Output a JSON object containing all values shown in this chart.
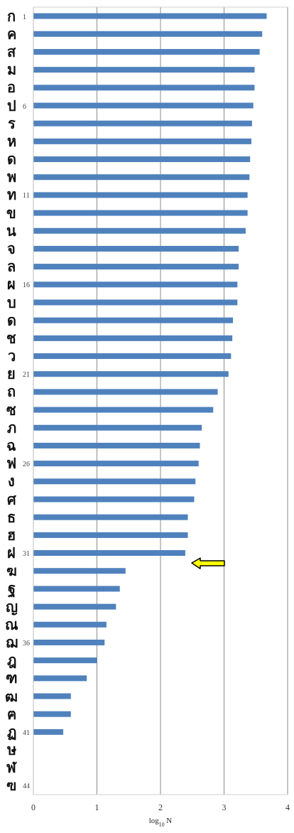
{
  "chart_data": {
    "type": "bar",
    "orientation": "horizontal",
    "xlabel": "log$_{10}$ N",
    "categories": [
      "ก",
      "ค",
      "ส",
      "ม",
      "อ",
      "ป",
      "ร",
      "ห",
      "ด",
      "พ",
      "ท",
      "ข",
      "น",
      "จ",
      "ล",
      "ผ",
      "บ",
      "ด",
      "ช",
      "ว",
      "ย",
      "ถ",
      "ซ",
      "ภ",
      "ฉ",
      "ฟ",
      "ง",
      "ศ",
      "ธ",
      "ฮ",
      "ฝ",
      "ฆ",
      "ฐ",
      "ญ",
      "ณ",
      "ฌ",
      "ฎ",
      "ฑ",
      "ฒ",
      "ฅ",
      "ฏ",
      "ษ",
      "ฬ",
      "ฃ"
    ],
    "values": [
      3.67,
      3.6,
      3.56,
      3.48,
      3.48,
      3.46,
      3.44,
      3.43,
      3.41,
      3.4,
      3.37,
      3.37,
      3.34,
      3.23,
      3.23,
      3.21,
      3.21,
      3.14,
      3.13,
      3.11,
      3.07,
      2.9,
      2.83,
      2.65,
      2.62,
      2.6,
      2.55,
      2.53,
      2.43,
      2.43,
      2.39,
      1.45,
      1.36,
      1.3,
      1.15,
      1.12,
      1.0,
      0.84,
      0.59,
      0.59,
      0.47,
      null,
      null,
      null
    ],
    "color": "#4f81bd",
    "xlim": [
      0,
      4
    ],
    "xticks": [
      0,
      1,
      2,
      3,
      4
    ],
    "grid": "x",
    "annotations": [
      "1",
      "6",
      "11",
      "16",
      "21",
      "26",
      "31",
      "36",
      "41",
      "44"
    ]
  }
}
